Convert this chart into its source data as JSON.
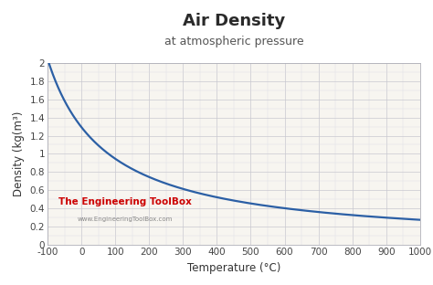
{
  "title": "Air Density",
  "subtitle": "at atmospheric pressure",
  "xlabel": "Temperature (°C)",
  "ylabel": "Density (kg(m³)",
  "xlim": [
    -100,
    1000
  ],
  "ylim": [
    0,
    2.0
  ],
  "xticks": [
    -100,
    0,
    100,
    200,
    300,
    400,
    500,
    600,
    700,
    800,
    900,
    1000
  ],
  "yticks": [
    0,
    0.2,
    0.4,
    0.6,
    0.8,
    1.0,
    1.2,
    1.4,
    1.6,
    1.8,
    2.0
  ],
  "line_color": "#2b5fa5",
  "line_width": 1.6,
  "bg_color": "#ffffff",
  "plot_bg_color": "#f7f5f0",
  "grid_major_color": "#c8c8d0",
  "grid_minor_color": "#dcdce4",
  "watermark_text": "The Engineering ToolBox",
  "watermark_url": "www.EngineeringToolBox.com",
  "watermark_color": "#cc0000",
  "title_fontsize": 13,
  "subtitle_fontsize": 9,
  "label_fontsize": 8.5,
  "tick_fontsize": 7.5
}
